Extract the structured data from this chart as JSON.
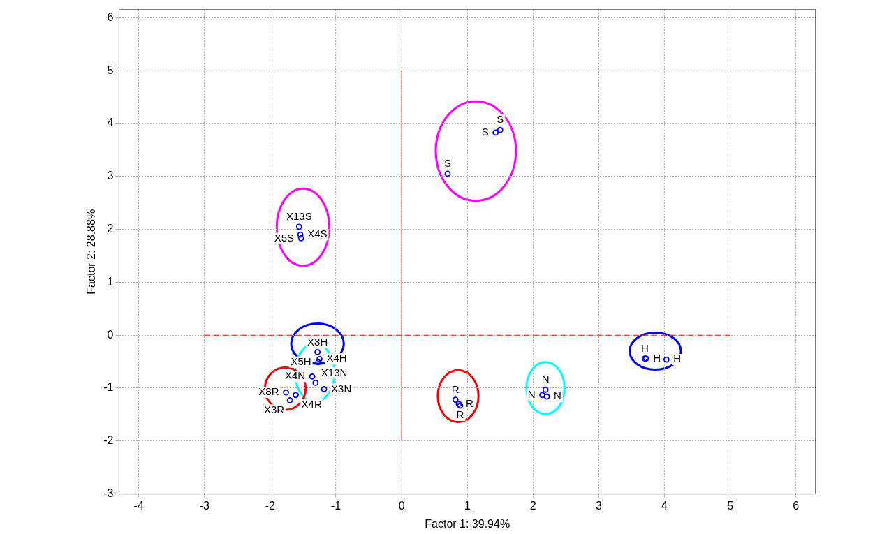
{
  "chart_data": {
    "type": "scatter",
    "xlabel": "Factor 1: 39.94%",
    "ylabel": "Factor 2: 28.88%",
    "xlim": [
      -4.3,
      6.3
    ],
    "xticks": [
      -4,
      -3,
      -2,
      -1,
      0,
      1,
      2,
      3,
      4,
      5,
      6
    ],
    "ylim": [
      -3,
      6.15
    ],
    "yticks": [
      -3,
      -2,
      -1,
      0,
      1,
      2,
      3,
      4,
      5,
      6
    ],
    "grid": true,
    "legend": false,
    "marker": "circle",
    "series": [
      {
        "type": "scatter",
        "color": "#0000ff",
        "x": [
          1.43,
          1.5,
          0.7,
          -1.56,
          -1.54,
          -1.53,
          -1.28,
          -1.25,
          -1.27,
          -1.36,
          -1.31,
          -1.18,
          -1.76,
          -1.61,
          -1.7,
          0.82,
          0.87,
          0.89,
          2.19,
          2.14,
          2.21,
          3.7,
          3.72,
          4.03
        ],
        "values": [
          3.83,
          3.88,
          3.05,
          2.05,
          1.9,
          1.83,
          -0.32,
          -0.45,
          -0.51,
          -0.78,
          -0.9,
          -1.02,
          -1.08,
          -1.13,
          -1.23,
          -1.22,
          -1.3,
          -1.33,
          -1.03,
          -1.13,
          -1.16,
          -0.44,
          -0.44,
          -0.46
        ],
        "value_labels": [
          "S",
          "S",
          "S",
          "X13S",
          "X4S",
          "X5S",
          "X3H",
          "X4H",
          "X5H",
          "X4N",
          "X13N",
          "X3N",
          "X8R",
          "X4R",
          "X3R",
          "R",
          "R",
          "R",
          "N",
          "N",
          "N",
          "H",
          "H",
          "H"
        ]
      },
      {
        "type": "line",
        "color": "#ff0000",
        "line_style": "solid",
        "marker": "none",
        "x": [
          0,
          0
        ],
        "values": [
          -2,
          5
        ]
      },
      {
        "type": "line",
        "color": "#ff0000",
        "line_style": "dashed",
        "marker": "none",
        "x": [
          -3,
          5
        ],
        "values": [
          0,
          0
        ]
      }
    ]
  }
}
